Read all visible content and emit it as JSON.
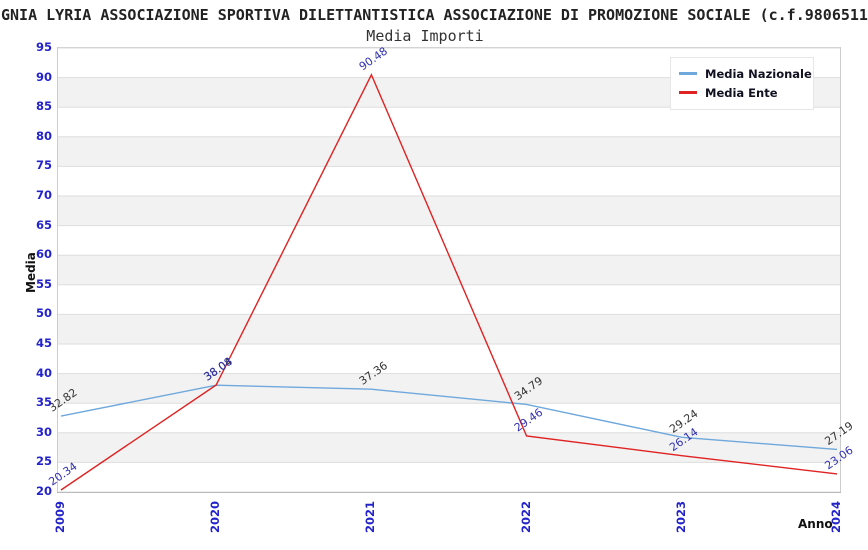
{
  "chart_data": {
    "type": "line",
    "title": "GNIA LYRIA ASSOCIAZIONE SPORTIVA DILETTANTISTICA ASSOCIAZIONE DI PROMOZIONE SOCIALE (c.f.9806511",
    "subtitle": "Media Importi",
    "xlabel": "Anno",
    "ylabel": "Media",
    "categories": [
      "2009",
      "2020",
      "2021",
      "2022",
      "2023",
      "2024"
    ],
    "series": [
      {
        "name": "Media Nazionale",
        "color": "#6FA8DC",
        "label_color": "#333333",
        "values": [
          32.82,
          38.04,
          37.36,
          34.79,
          29.24,
          27.19
        ]
      },
      {
        "name": "Media Ente",
        "color": "#E02222",
        "label_color": "#3030B0",
        "values": [
          20.34,
          38.08,
          90.48,
          29.46,
          26.14,
          23.06
        ]
      }
    ],
    "ylim": [
      20,
      95
    ],
    "y_ticks": [
      20,
      25,
      30,
      35,
      40,
      45,
      50,
      55,
      60,
      65,
      70,
      75,
      80,
      85,
      90,
      95
    ],
    "grid": "horizontal",
    "legend_position": "top-right",
    "band_colors": [
      "#ffffff",
      "#f2f2f2"
    ],
    "grid_color": "#dddddd",
    "tick_color": "#2323cc"
  }
}
